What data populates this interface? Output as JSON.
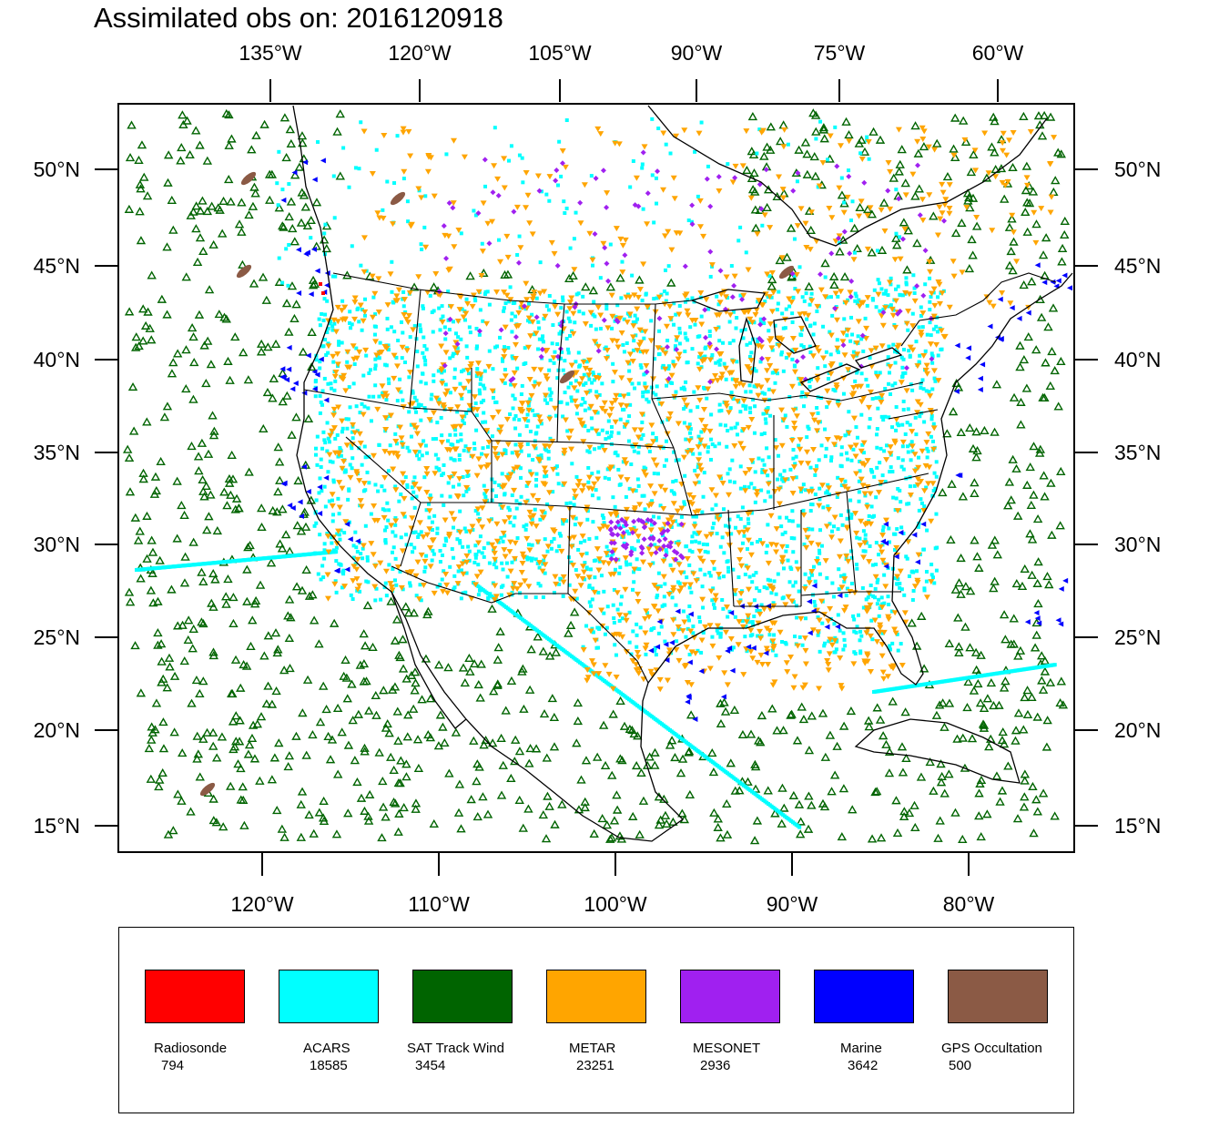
{
  "title": "Assimilated obs on: 2016120918",
  "axes": {
    "top_lon_ticks": [
      "135°W",
      "120°W",
      "105°W",
      "90°W",
      "75°W",
      "60°W"
    ],
    "bottom_lon_ticks": [
      "120°W",
      "110°W",
      "100°W",
      "90°W",
      "80°W"
    ],
    "lat_ticks": [
      "50°N",
      "45°N",
      "40°N",
      "35°N",
      "30°N",
      "25°N",
      "20°N",
      "15°N"
    ]
  },
  "legend": [
    {
      "label": "Radiosonde",
      "count": "794",
      "color": "#ff0000"
    },
    {
      "label": "ACARS",
      "count": "18585",
      "color": "#00ffff"
    },
    {
      "label": "SAT Track Wind",
      "count": "3454",
      "color": "#006400"
    },
    {
      "label": "METAR",
      "count": "23251",
      "color": "#ffa500"
    },
    {
      "label": "MESONET",
      "count": "2936",
      "color": "#a020f0"
    },
    {
      "label": "Marine",
      "count": "3642",
      "color": "#0000ff"
    },
    {
      "label": "GPS Occultation",
      "count": "500",
      "color": "#8b5a45"
    }
  ]
}
